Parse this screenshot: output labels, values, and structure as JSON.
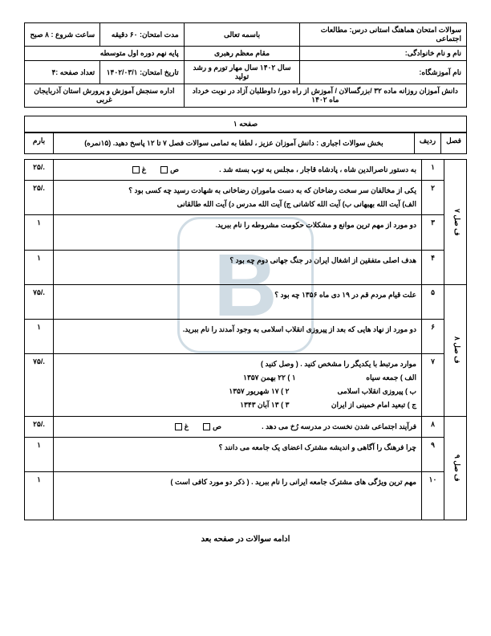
{
  "header": {
    "r1c1": "سوالات امتحان هماهنگ استانی درس: مطالعات اجتماعی",
    "r1c2": "باسمه تعالی",
    "r1c3": "مدت امتحان: ۶۰ دقیقه",
    "r1c4": "ساعت شروع : ۸ صبح",
    "r2c1": "نام و نام خانوادگی:",
    "r2c2": "مقام معظم رهبری",
    "r2c3": "پایه نهم دوره اول متوسطه",
    "r3c1": "نام آموزشگاه:",
    "r3c2": "سال ۱۴۰۲ سال مهار تورم و رشد تولید",
    "r3c3": "تاریخ امتحان: ۱۴۰۲/۰۳/۱",
    "r3c4": "تعداد صفحه :۴",
    "r4": "دانش آموزان روزانه ماده ۳۲ /بزرگسالان / آموزش از راه دور/ داوطلبان آزاد در نوبت خرداد ماه ۱۴۰۲",
    "r4b": "اداره سنجش آموزش و پرورش استان آذربایجان غربی"
  },
  "page_label": "صفحه ۱",
  "cols": {
    "fasl": "فصل",
    "radif": "ردیف",
    "barem": "بارم"
  },
  "section_title": "بخش سوالات اجباری : دانش آموزان عزیز ، لطفا به تمامی سوالات فصل ۷ تا ۱۲ پاسخ دهید. (۱۵نمره)",
  "fasl1": "ف صل ۷",
  "fasl2": "ف صل ۸",
  "fasl3": "ف صل ۹",
  "q1": {
    "n": "۱",
    "t": "به دستور ناصرالدین شاه ،  پادشاه قاجار ، مجلس به توپ بسته شد .",
    "c": "ص",
    "g": "غ",
    "b": "./۲۵"
  },
  "q2": {
    "n": "۲",
    "t": "یکی از مخالفان سر سخت رضاخان که به دست ماموران رضاخانی به شهادت رسید چه کسی بود ؟",
    "opts": "الف) آیت الله بهبهانی       ب) آیت الله کاشانی       ج) آیت الله مدرس       د)  آیت الله طالقانی",
    "b": "./۲۵"
  },
  "q3": {
    "n": "۳",
    "t": "دو مورد از مهم ترین موانع و مشکلات حکومت مشروطه را نام ببرید.",
    "b": "۱"
  },
  "q4": {
    "n": "۴",
    "t": "هدف اصلی متفقین از اشغال ایران در جنگ جهانی دوم چه بود ؟",
    "b": "۱"
  },
  "q5": {
    "n": "۵",
    "t": "علت قیام مردم قم در ۱۹ دی ماه ۱۳۵۶ چه بود ؟",
    "b": "./۷۵"
  },
  "q6": {
    "n": "۶",
    "t": "دو مورد از نهاد هایی که بعد از پیروزی انقلاب اسلامی به وجود آمدند را نام ببرید.",
    "b": "۱"
  },
  "q7": {
    "n": "۷",
    "t": "موارد مرتبط با یکدیگر را مشخص کنید . ( وصل کنید )",
    "a": "الف ) جمعه سیاه",
    "b2": "ب ) پیروزی انقلاب اسلامی",
    "c": "ج ) تبعید امام خمینی از ایران",
    "d1": "۱ ) ۲۲ بهمن ۱۳۵۷",
    "d2": "۲ ) ۱۷ شهریور ۱۳۵۷",
    "d3": "۳ ) ۱۳ آبان ۱۳۴۳",
    "b": "./۷۵"
  },
  "q8": {
    "n": "۸",
    "t": "فرآیند اجتماعی شدن نخست در مدرسه رُخ می دهد .",
    "c": "ص",
    "g": "غ",
    "b": "./۲۵"
  },
  "q9": {
    "n": "۹",
    "t": "چرا فرهنگ را آگاهی و اندیشه مشترک اعضای یک جامعه می دانند ؟",
    "b": "۱"
  },
  "q10": {
    "n": "۱۰",
    "t": "مهم ترین ویژگی های مشترک جامعه ایرانی را نام ببرید . ( ذکر دو مورد کافی است )",
    "b": "۱"
  },
  "footer": "ادامه سوالات در صفحه بعد",
  "wm": "B"
}
